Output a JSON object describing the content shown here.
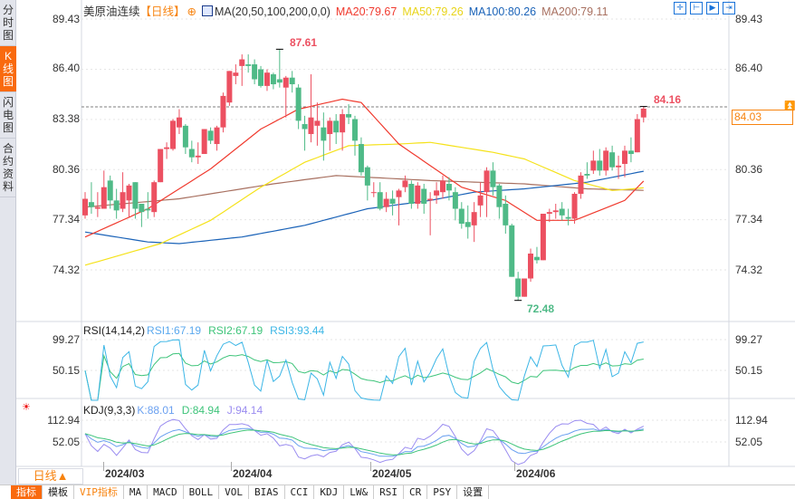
{
  "sidebar": {
    "tabs": [
      {
        "label": "分时图"
      },
      {
        "label": "K线图"
      },
      {
        "label": "闪电图"
      },
      {
        "label": "合约资料"
      }
    ],
    "active": 1
  },
  "header": {
    "instrument": "美原油连续",
    "period": "【日线】",
    "ma_label": "MA(20,50,100,200,0,0)",
    "ma20": "MA20:79.67",
    "ma50": "MA50:79.26",
    "ma100": "MA100:80.26",
    "ma200": "MA200:79.11"
  },
  "colors": {
    "up": "#ec5061",
    "down": "#4fba87",
    "ma20": "#f03a2e",
    "ma50": "#f5e21a",
    "ma100": "#1b63b8",
    "ma200": "#a87060",
    "rsi1": "#5aa8ee",
    "rsi2": "#3ec47a",
    "rsi3": "#3cb6e6",
    "k": "#6aa0f0",
    "d": "#3ec47a",
    "j": "#9a8cf0"
  },
  "price_axis": [
    "89.43",
    "86.40",
    "83.38",
    "80.36",
    "77.34",
    "74.32"
  ],
  "price_tag": "84.03",
  "annotations": {
    "high": "87.61",
    "low": "72.48",
    "last_high": "84.16"
  },
  "rsi": {
    "label": "RSI(14,14,2)",
    "rsi1": "RSI1:67.19",
    "rsi2": "RSI2:67.19",
    "rsi3": "RSI3:93.44",
    "axis": [
      "99.27",
      "50.15"
    ]
  },
  "kdj": {
    "label": "KDJ(9,3,3)",
    "k": "K:88.01",
    "d": "D:84.94",
    "j": "J:94.14",
    "axis": [
      "112.94",
      "52.05"
    ]
  },
  "period_selector": "日线▲",
  "time_axis": [
    {
      "label": "2024/03",
      "index": 3
    },
    {
      "label": "2024/04",
      "index": 24
    },
    {
      "label": "2024/05",
      "index": 46
    },
    {
      "label": "2024/06",
      "index": 69
    }
  ],
  "bottom_tabs": [
    "指标",
    "模板",
    "VIP指标",
    "MA",
    "MACD",
    "BOLL",
    "VOL",
    "BIAS",
    "CCI",
    "KDJ",
    "LW&",
    "RSI",
    "CR",
    "PSY",
    "设置"
  ],
  "chart_data": {
    "type": "candlestick",
    "candles_ochl": [
      [
        77.6,
        78.6,
        79.0,
        77.4
      ],
      [
        78.4,
        78.1,
        79.6,
        77.7
      ],
      [
        78.0,
        78.1,
        79.0,
        77.5
      ],
      [
        78.0,
        79.3,
        80.3,
        78.0
      ],
      [
        79.7,
        78.5,
        80.0,
        78.0
      ],
      [
        78.5,
        77.9,
        79.2,
        77.4
      ],
      [
        78.0,
        79.0,
        80.2,
        77.8
      ],
      [
        78.5,
        79.4,
        79.5,
        77.5
      ],
      [
        79.6,
        78.0,
        79.6,
        77.4
      ],
      [
        78.3,
        77.8,
        78.3,
        76.9
      ],
      [
        78.0,
        77.9,
        79.0,
        77.4
      ],
      [
        77.8,
        79.6,
        79.7,
        77.5
      ],
      [
        79.6,
        81.6,
        81.6,
        79.6
      ],
      [
        81.6,
        81.7,
        82.0,
        81.0
      ],
      [
        81.6,
        83.3,
        83.4,
        81.5
      ],
      [
        82.9,
        83.5,
        84.0,
        82.5
      ],
      [
        83.0,
        81.7,
        83.1,
        81.3
      ],
      [
        81.6,
        81.1,
        82.1,
        80.8
      ],
      [
        81.1,
        81.2,
        82.0,
        80.7
      ],
      [
        81.3,
        82.8,
        82.8,
        81.3
      ],
      [
        82.7,
        82.1,
        82.9,
        81.9
      ],
      [
        81.9,
        82.9,
        83.0,
        81.5
      ],
      [
        82.9,
        84.8,
        85.0,
        82.6
      ],
      [
        84.4,
        86.3,
        86.3,
        84.2
      ],
      [
        86.0,
        86.2,
        86.7,
        85.5
      ],
      [
        86.6,
        87.0,
        87.3,
        85.4
      ],
      [
        86.7,
        86.6,
        87.3,
        86.2
      ],
      [
        86.7,
        85.8,
        87.0,
        85.5
      ],
      [
        86.4,
        85.4,
        86.6,
        85.3
      ],
      [
        85.4,
        86.2,
        86.4,
        85.1
      ],
      [
        86.1,
        85.5,
        86.2,
        85.2
      ],
      [
        85.8,
        85.6,
        87.61,
        85.3
      ],
      [
        85.3,
        85.9,
        86.0,
        83.5
      ],
      [
        85.9,
        85.5,
        86.3,
        85.0
      ],
      [
        85.3,
        83.3,
        85.5,
        82.8
      ],
      [
        83.1,
        82.8,
        83.6,
        81.5
      ],
      [
        82.5,
        83.5,
        86.1,
        82.0
      ],
      [
        83.0,
        83.3,
        84.4,
        81.8
      ],
      [
        82.9,
        82.1,
        83.8,
        80.9
      ],
      [
        82.5,
        83.3,
        83.5,
        81.5
      ],
      [
        83.3,
        82.6,
        83.7,
        81.9
      ],
      [
        82.6,
        83.7,
        84.0,
        81.5
      ],
      [
        83.7,
        83.5,
        84.3,
        83.1
      ],
      [
        83.4,
        82.1,
        83.6,
        81.2
      ],
      [
        81.9,
        80.2,
        82.3,
        80.0
      ],
      [
        80.5,
        79.4,
        80.6,
        78.5
      ],
      [
        79.0,
        79.0,
        79.6,
        78.7
      ],
      [
        79.0,
        78.0,
        79.6,
        77.9
      ],
      [
        78.1,
        78.6,
        79.0,
        77.8
      ],
      [
        78.6,
        78.3,
        79.1,
        77.6
      ],
      [
        78.7,
        79.1,
        79.2,
        77.0
      ],
      [
        79.3,
        79.7,
        80.0,
        79.0
      ],
      [
        79.5,
        78.3,
        79.7,
        78.0
      ],
      [
        78.3,
        79.4,
        79.6,
        78.0
      ],
      [
        79.2,
        78.3,
        79.5,
        77.7
      ],
      [
        78.5,
        78.6,
        79.0,
        76.4
      ],
      [
        78.8,
        79.1,
        79.6,
        78.3
      ],
      [
        79.0,
        79.7,
        80.0,
        78.6
      ],
      [
        79.5,
        79.1,
        79.9,
        78.5
      ],
      [
        79.0,
        78.0,
        79.3,
        77.3
      ],
      [
        78.0,
        77.1,
        78.4,
        76.8
      ],
      [
        77.2,
        76.9,
        78.2,
        76.2
      ],
      [
        77.0,
        77.8,
        78.4,
        76.0
      ],
      [
        78.2,
        78.8,
        79.6,
        77.5
      ],
      [
        79.0,
        80.3,
        80.5,
        77.5
      ],
      [
        80.3,
        79.3,
        80.8,
        78.8
      ],
      [
        79.4,
        78.1,
        79.5,
        77.4
      ],
      [
        78.3,
        77.0,
        78.8,
        76.5
      ],
      [
        77.0,
        73.9,
        77.1,
        73.9
      ],
      [
        73.8,
        72.7,
        74.2,
        72.48
      ],
      [
        72.7,
        73.8,
        73.8,
        72.7
      ],
      [
        73.8,
        75.3,
        75.6,
        73.6
      ],
      [
        75.1,
        74.9,
        75.7,
        74.7
      ],
      [
        74.9,
        77.7,
        77.7,
        74.9
      ],
      [
        77.7,
        77.8,
        78.0,
        77.2
      ],
      [
        77.8,
        77.9,
        78.3,
        77.4
      ],
      [
        78.0,
        77.6,
        78.4,
        77.3
      ],
      [
        77.5,
        77.4,
        78.0,
        77.0
      ],
      [
        77.4,
        78.9,
        79.0,
        77.1
      ],
      [
        78.9,
        80.0,
        80.2,
        78.6
      ],
      [
        80.1,
        80.0,
        80.8,
        79.8
      ],
      [
        80.3,
        80.9,
        81.5,
        80.1
      ],
      [
        80.9,
        80.3,
        81.6,
        80.0
      ],
      [
        80.3,
        81.5,
        81.7,
        80.0
      ],
      [
        81.4,
        80.5,
        81.8,
        80.3
      ],
      [
        80.5,
        80.6,
        81.2,
        79.8
      ],
      [
        80.7,
        81.5,
        81.8,
        79.9
      ],
      [
        81.5,
        81.3,
        82.3,
        80.8
      ],
      [
        81.4,
        83.4,
        83.7,
        81.4
      ],
      [
        83.5,
        84.03,
        84.16,
        83.2
      ]
    ],
    "ma_points": {
      "ma20": [
        [
          0,
          76.3
        ],
        [
          10,
          78.0
        ],
        [
          20,
          80.4
        ],
        [
          28,
          82.8
        ],
        [
          34,
          84.0
        ],
        [
          41,
          84.6
        ],
        [
          44,
          84.4
        ],
        [
          50,
          81.9
        ],
        [
          55,
          80.6
        ],
        [
          60,
          79.3
        ],
        [
          67,
          78.5
        ],
        [
          72,
          77.3
        ],
        [
          78,
          77.3
        ],
        [
          82,
          77.9
        ],
        [
          86,
          78.5
        ],
        [
          89,
          79.67
        ]
      ],
      "ma50": [
        [
          0,
          74.6
        ],
        [
          12,
          75.9
        ],
        [
          20,
          77.3
        ],
        [
          28,
          79.3
        ],
        [
          35,
          80.8
        ],
        [
          42,
          81.8
        ],
        [
          50,
          81.9
        ],
        [
          55,
          82.0
        ],
        [
          65,
          81.4
        ],
        [
          70,
          81.0
        ],
        [
          78,
          79.7
        ],
        [
          84,
          79.1
        ],
        [
          89,
          79.26
        ]
      ],
      "ma100": [
        [
          0,
          76.6
        ],
        [
          10,
          76.0
        ],
        [
          15,
          75.9
        ],
        [
          25,
          76.3
        ],
        [
          35,
          77.0
        ],
        [
          45,
          78.0
        ],
        [
          55,
          78.5
        ],
        [
          62,
          79.0
        ],
        [
          70,
          79.2
        ],
        [
          80,
          79.6
        ],
        [
          89,
          80.26
        ]
      ],
      "ma200": [
        [
          0,
          78.1
        ],
        [
          15,
          78.6
        ],
        [
          30,
          79.5
        ],
        [
          40,
          80.0
        ],
        [
          55,
          79.7
        ],
        [
          70,
          79.5
        ],
        [
          80,
          79.2
        ],
        [
          89,
          79.11
        ]
      ]
    },
    "price_range": [
      71.5,
      89.43
    ]
  }
}
